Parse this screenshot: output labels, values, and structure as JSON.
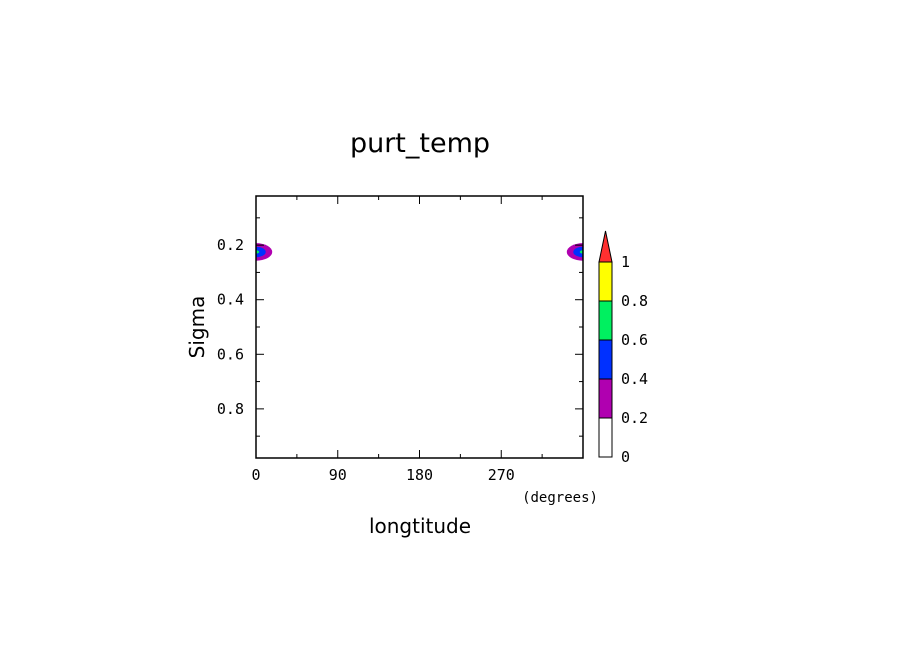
{
  "chart_data": {
    "type": "contour",
    "title": "purt_temp",
    "xlabel": "longtitude",
    "xunit": "(degrees)",
    "ylabel": "Sigma",
    "xlim": [
      0,
      360
    ],
    "ylim": [
      0.98,
      0.02
    ],
    "xticks": [
      0,
      90,
      180,
      270
    ],
    "xtick_labels": [
      "0",
      "90",
      "180",
      "270"
    ],
    "yticks": [
      0.2,
      0.4,
      0.6,
      0.8
    ],
    "ytick_labels": [
      "0.2",
      "0.4",
      "0.6",
      "0.8"
    ],
    "grid": false,
    "levels": [
      0,
      0.2,
      0.4,
      0.6,
      0.8,
      1
    ],
    "level_labels": [
      "0",
      "0.2",
      "0.4",
      "0.6",
      "0.8",
      "1"
    ],
    "level_colors": [
      "#ffffff",
      "#b000b0",
      "#0030ff",
      "#00f060",
      "#ffff00",
      "#ff3030"
    ],
    "colorbar_extend": "max",
    "features": [
      {
        "center_lon": 0,
        "center_sigma": 0.225,
        "half_width_lon": 25,
        "half_height_sigma": 0.045,
        "peak": 0.7
      },
      {
        "center_lon": 360,
        "center_sigma": 0.225,
        "half_width_lon": 25,
        "half_height_sigma": 0.045,
        "peak": 0.7
      }
    ]
  }
}
